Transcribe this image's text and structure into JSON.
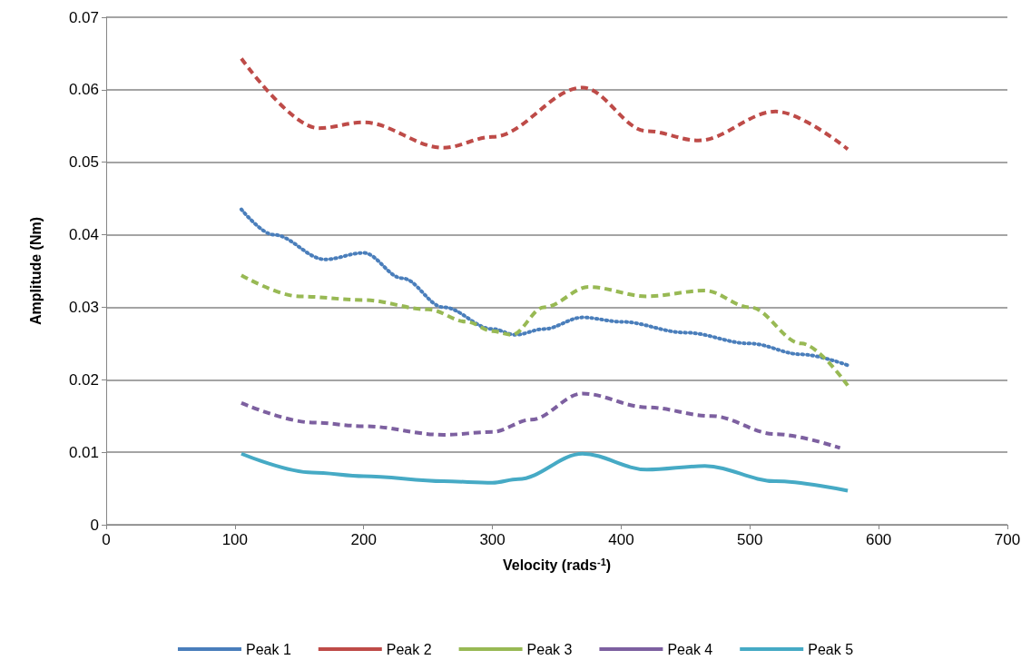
{
  "chart_data": {
    "type": "line",
    "xlabel": "Velocity (rads$^{-1}$)",
    "ylabel": "Amplitude (Nm)",
    "xlim": [
      0,
      700
    ],
    "xticks": [
      0,
      100,
      200,
      300,
      400,
      500,
      600,
      700
    ],
    "ylim": [
      0,
      0.07
    ],
    "yticks": [
      0,
      0.01,
      0.02,
      0.03,
      0.04,
      0.05,
      0.06,
      0.07
    ],
    "grid": "y",
    "legend": "bottom",
    "marker": "none",
    "series": [
      {
        "name": "Peak 1",
        "color": "#4a7ebb",
        "line_style": "dotted",
        "x": [
          105,
          130,
          170,
          200,
          230,
          262,
          300,
          318,
          340,
          370,
          400,
          450,
          500,
          540,
          576
        ],
        "values": [
          0.0435,
          0.04,
          0.0366,
          0.0375,
          0.034,
          0.03,
          0.027,
          0.0262,
          0.027,
          0.0286,
          0.028,
          0.0265,
          0.025,
          0.0235,
          0.022
        ]
      },
      {
        "name": "Peak 2",
        "color": "#be4b48",
        "line_style": "dashed",
        "x": [
          105,
          165,
          200,
          262,
          300,
          370,
          420,
          460,
          520,
          576
        ],
        "values": [
          0.0643,
          0.0547,
          0.0555,
          0.052,
          0.0535,
          0.0603,
          0.0543,
          0.053,
          0.057,
          0.0518
        ]
      },
      {
        "name": "Peak 3",
        "color": "#98b954",
        "line_style": "dashed",
        "x": [
          105,
          150,
          200,
          250,
          280,
          300,
          315,
          340,
          375,
          420,
          465,
          500,
          540,
          576
        ],
        "values": [
          0.0344,
          0.0315,
          0.031,
          0.0297,
          0.028,
          0.0267,
          0.0262,
          0.03,
          0.0328,
          0.0315,
          0.0323,
          0.03,
          0.025,
          0.0192
        ]
      },
      {
        "name": "Peak 4",
        "color": "#7d60a0",
        "line_style": "dashed",
        "x": [
          105,
          160,
          200,
          262,
          300,
          330,
          370,
          420,
          470,
          520,
          570
        ],
        "values": [
          0.0168,
          0.0141,
          0.0136,
          0.0124,
          0.0128,
          0.0145,
          0.0181,
          0.0162,
          0.015,
          0.0125,
          0.0106
        ]
      },
      {
        "name": "Peak 5",
        "color": "#46aac5",
        "line_style": "solid",
        "x": [
          105,
          160,
          200,
          262,
          300,
          320,
          370,
          420,
          465,
          520,
          576
        ],
        "values": [
          0.0098,
          0.0072,
          0.0067,
          0.006,
          0.0058,
          0.0063,
          0.0098,
          0.0076,
          0.0081,
          0.006,
          0.0047
        ]
      }
    ]
  }
}
